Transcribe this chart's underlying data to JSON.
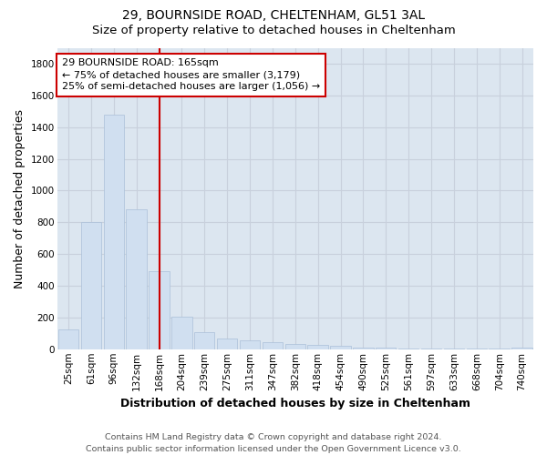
{
  "title_line1": "29, BOURNSIDE ROAD, CHELTENHAM, GL51 3AL",
  "title_line2": "Size of property relative to detached houses in Cheltenham",
  "xlabel": "Distribution of detached houses by size in Cheltenham",
  "ylabel": "Number of detached properties",
  "categories": [
    "25sqm",
    "61sqm",
    "96sqm",
    "132sqm",
    "168sqm",
    "204sqm",
    "239sqm",
    "275sqm",
    "311sqm",
    "347sqm",
    "382sqm",
    "418sqm",
    "454sqm",
    "490sqm",
    "525sqm",
    "561sqm",
    "597sqm",
    "633sqm",
    "668sqm",
    "704sqm",
    "740sqm"
  ],
  "values": [
    125,
    800,
    1480,
    880,
    490,
    205,
    105,
    65,
    55,
    45,
    35,
    30,
    20,
    12,
    8,
    5,
    5,
    3,
    3,
    3,
    10
  ],
  "bar_color": "#d0dff0",
  "bar_edgecolor": "#aabfd8",
  "vline_x_index": 4,
  "vline_color": "#cc0000",
  "annotation_text": "29 BOURNSIDE ROAD: 165sqm\n← 75% of detached houses are smaller (3,179)\n25% of semi-detached houses are larger (1,056) →",
  "annotation_box_facecolor": "#ffffff",
  "annotation_box_edgecolor": "#cc0000",
  "ylim": [
    0,
    1900
  ],
  "yticks": [
    0,
    200,
    400,
    600,
    800,
    1000,
    1200,
    1400,
    1600,
    1800
  ],
  "grid_color": "#c8d0dc",
  "background_color": "#dce6f0",
  "footer_text": "Contains HM Land Registry data © Crown copyright and database right 2024.\nContains public sector information licensed under the Open Government Licence v3.0.",
  "title_fontsize": 10,
  "subtitle_fontsize": 9.5,
  "axis_label_fontsize": 9,
  "tick_fontsize": 7.5,
  "annotation_fontsize": 8,
  "footer_fontsize": 6.8
}
